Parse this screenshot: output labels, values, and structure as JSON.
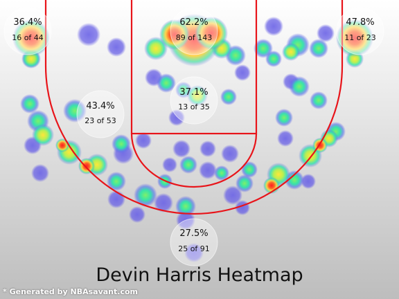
{
  "chart_data": {
    "type": "heatmap",
    "title": "Devin Harris Heatmap",
    "credit": "* Generated by NBAsavant.com",
    "zones": [
      {
        "id": "left-corner",
        "pct": "36.4%",
        "made_attempts": "16 of 44"
      },
      {
        "id": "restricted-area",
        "pct": "62.2%",
        "made_attempts": "89 of 143"
      },
      {
        "id": "right-corner",
        "pct": "47.8%",
        "made_attempts": "11 of 23"
      },
      {
        "id": "left-wing-mid",
        "pct": "43.4%",
        "made_attempts": "23 of 53"
      },
      {
        "id": "paint",
        "pct": "37.1%",
        "made_attempts": "13 of 35"
      },
      {
        "id": "top-three",
        "pct": "27.5%",
        "made_attempts": "25 of 91"
      }
    ],
    "colors": {
      "background_top": "#ffffff",
      "background_bottom": "#bdbdbd",
      "court_lines": "#e8141a",
      "cold": "#6a62e6",
      "hot": "#ff2a1a"
    }
  }
}
